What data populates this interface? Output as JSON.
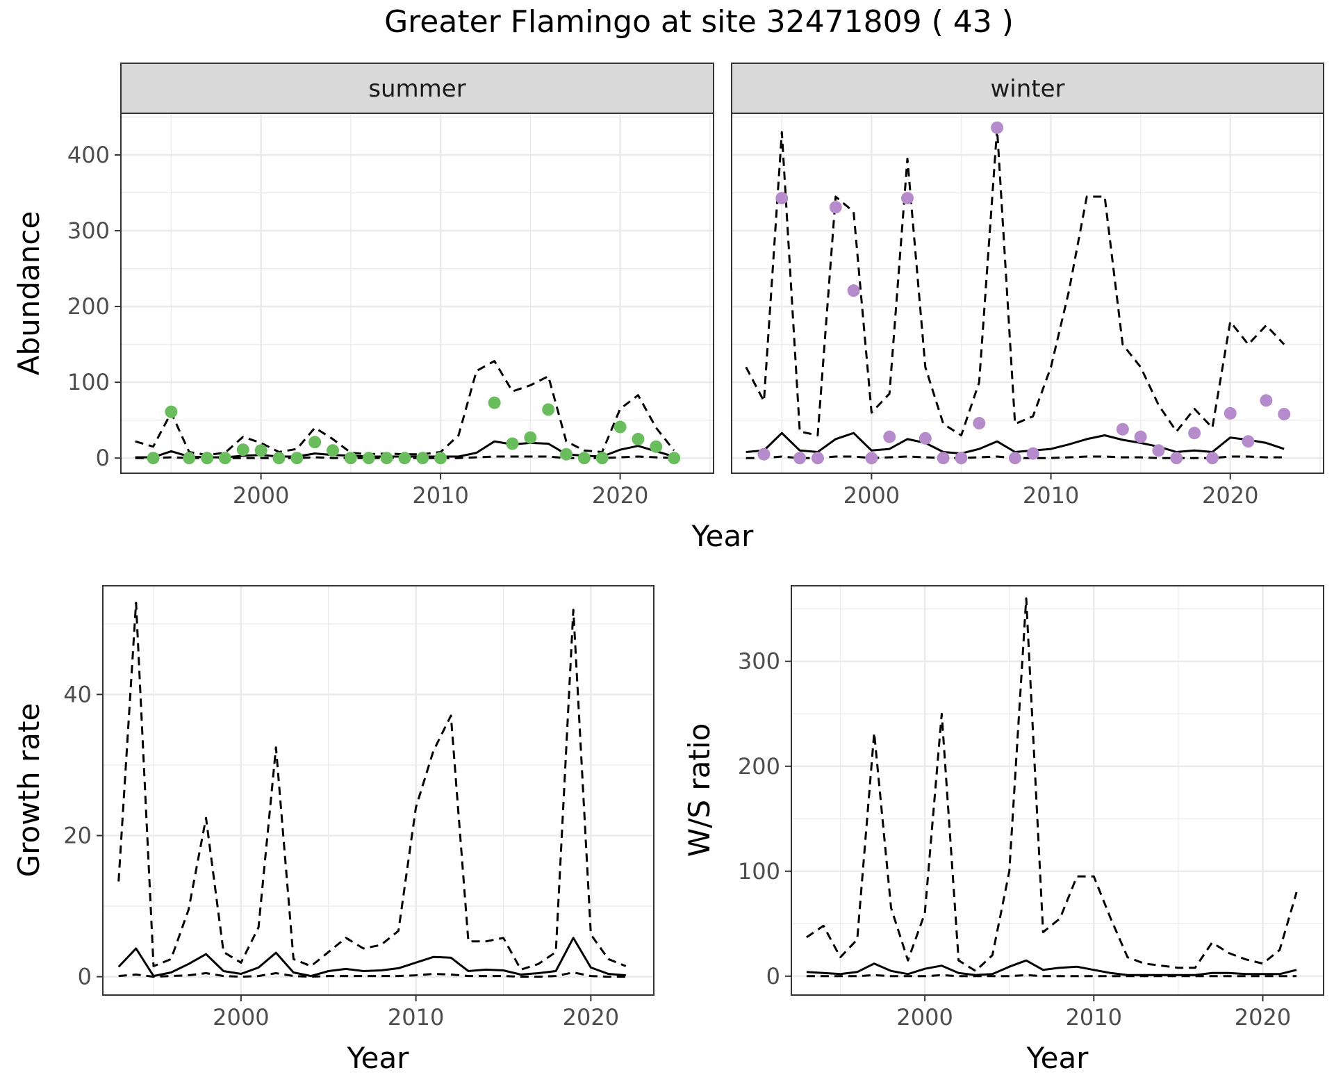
{
  "title": "Greater Flamingo at site 32471809 ( 43 )",
  "colors": {
    "summer_points": "#6ABD5C",
    "winter_points": "#B68BCB",
    "lines": "#000000",
    "grid": "#EBEBEB",
    "strip_bg": "#D9D9D9",
    "panel_border": "#333333",
    "axis_text": "#4D4D4D"
  },
  "chart_data": [
    {
      "type": "line",
      "panel": "summer",
      "strip_label": "summer",
      "xlabel": "Year",
      "ylabel": "Abundance",
      "xlim": [
        1992.2,
        2025.2
      ],
      "ylim": [
        -20,
        455
      ],
      "xticks": [
        2000,
        2010,
        2020
      ],
      "yticks": [
        0,
        100,
        200,
        300,
        400
      ],
      "grid": true,
      "series": [
        {
          "role": "points",
          "x": [
            1994,
            1995,
            1996,
            1997,
            1998,
            1999,
            2000,
            2001,
            2002,
            2003,
            2004,
            2005,
            2006,
            2007,
            2008,
            2009,
            2010,
            2013,
            2014,
            2015,
            2016,
            2017,
            2018,
            2019,
            2020,
            2021,
            2022,
            2023
          ],
          "values": [
            0,
            61,
            0,
            0,
            0,
            11,
            10,
            0,
            0,
            21,
            10,
            0,
            0,
            0,
            0,
            0,
            0,
            73,
            19,
            27,
            64,
            5,
            0,
            0,
            41,
            25,
            15,
            0
          ]
        },
        {
          "role": "mean",
          "style": "solid",
          "x": [
            1993,
            1994,
            1995,
            1996,
            1997,
            1998,
            1999,
            2000,
            2001,
            2002,
            2003,
            2004,
            2005,
            2006,
            2007,
            2008,
            2009,
            2010,
            2011,
            2012,
            2013,
            2014,
            2015,
            2016,
            2017,
            2018,
            2019,
            2020,
            2021,
            2022,
            2023
          ],
          "values": [
            1,
            1,
            9,
            2,
            1,
            1,
            3,
            4,
            2,
            2,
            6,
            4,
            3,
            2,
            2,
            2,
            2,
            2,
            2,
            7,
            22,
            18,
            20,
            19,
            5,
            3,
            2,
            11,
            16,
            9,
            2
          ]
        },
        {
          "role": "upper",
          "style": "dashed",
          "x": [
            1993,
            1994,
            1995,
            1996,
            1997,
            1998,
            1999,
            2000,
            2001,
            2002,
            2003,
            2004,
            2005,
            2006,
            2007,
            2008,
            2009,
            2010,
            2011,
            2012,
            2013,
            2014,
            2015,
            2016,
            2017,
            2018,
            2019,
            2020,
            2021,
            2022,
            2023
          ],
          "values": [
            22,
            15,
            60,
            8,
            4,
            7,
            28,
            20,
            8,
            12,
            40,
            25,
            7,
            5,
            6,
            5,
            5,
            8,
            30,
            115,
            128,
            88,
            96,
            108,
            22,
            10,
            8,
            65,
            83,
            40,
            10
          ]
        },
        {
          "role": "lower",
          "style": "dashed",
          "x": [
            1993,
            1994,
            1995,
            1996,
            1997,
            1998,
            1999,
            2000,
            2001,
            2002,
            2003,
            2004,
            2005,
            2006,
            2007,
            2008,
            2009,
            2010,
            2011,
            2012,
            2013,
            2014,
            2015,
            2016,
            2017,
            2018,
            2019,
            2020,
            2021,
            2022,
            2023
          ],
          "values": [
            0,
            0,
            1,
            0,
            0,
            0,
            0,
            0,
            0,
            0,
            1,
            0,
            0,
            0,
            0,
            0,
            0,
            0,
            0,
            1,
            2,
            2,
            2,
            2,
            0,
            0,
            0,
            1,
            2,
            1,
            0
          ]
        }
      ]
    },
    {
      "type": "line",
      "panel": "winter",
      "strip_label": "winter",
      "xlabel": "Year",
      "ylabel": "",
      "xlim": [
        1992.2,
        2025.2
      ],
      "ylim": [
        -20,
        455
      ],
      "xticks": [
        2000,
        2010,
        2020
      ],
      "yticks": [
        0,
        100,
        200,
        300,
        400
      ],
      "grid": true,
      "series": [
        {
          "role": "points",
          "x": [
            1994,
            1995,
            1996,
            1997,
            1998,
            1999,
            2000,
            2001,
            2002,
            2003,
            2004,
            2005,
            2006,
            2007,
            2008,
            2009,
            2014,
            2015,
            2016,
            2017,
            2018,
            2019,
            2020,
            2021,
            2022,
            2023
          ],
          "values": [
            5,
            343,
            0,
            0,
            331,
            221,
            0,
            28,
            343,
            26,
            0,
            0,
            46,
            436,
            0,
            6,
            38,
            28,
            10,
            0,
            33,
            0,
            59,
            22,
            76,
            58
          ]
        },
        {
          "role": "mean",
          "style": "solid",
          "x": [
            1993,
            1994,
            1995,
            1996,
            1997,
            1998,
            1999,
            2000,
            2001,
            2002,
            2003,
            2004,
            2005,
            2006,
            2007,
            2008,
            2009,
            2010,
            2011,
            2012,
            2013,
            2014,
            2015,
            2016,
            2017,
            2018,
            2019,
            2020,
            2021,
            2022,
            2023
          ],
          "values": [
            8,
            10,
            33,
            10,
            8,
            25,
            33,
            10,
            12,
            25,
            20,
            8,
            6,
            12,
            22,
            8,
            10,
            12,
            18,
            25,
            30,
            24,
            20,
            15,
            8,
            10,
            8,
            27,
            24,
            20,
            12
          ]
        },
        {
          "role": "upper",
          "style": "dashed",
          "x": [
            1993,
            1994,
            1995,
            1996,
            1997,
            1998,
            1999,
            2000,
            2001,
            2002,
            2003,
            2004,
            2005,
            2006,
            2007,
            2008,
            2009,
            2010,
            2011,
            2012,
            2013,
            2014,
            2015,
            2016,
            2017,
            2018,
            2019,
            2020,
            2021,
            2022,
            2023
          ],
          "values": [
            120,
            75,
            430,
            35,
            30,
            345,
            325,
            60,
            85,
            395,
            120,
            45,
            30,
            100,
            435,
            45,
            55,
            120,
            220,
            345,
            345,
            150,
            120,
            70,
            35,
            65,
            40,
            180,
            150,
            175,
            150
          ]
        },
        {
          "role": "lower",
          "style": "dashed",
          "x": [
            1993,
            1994,
            1995,
            1996,
            1997,
            1998,
            1999,
            2000,
            2001,
            2002,
            2003,
            2004,
            2005,
            2006,
            2007,
            2008,
            2009,
            2010,
            2011,
            2012,
            2013,
            2014,
            2015,
            2016,
            2017,
            2018,
            2019,
            2020,
            2021,
            2022,
            2023
          ],
          "values": [
            0,
            0,
            2,
            0,
            0,
            2,
            2,
            0,
            1,
            2,
            1,
            0,
            0,
            1,
            2,
            0,
            0,
            0,
            1,
            2,
            2,
            1,
            1,
            0,
            0,
            0,
            0,
            2,
            2,
            1,
            1
          ]
        }
      ]
    },
    {
      "type": "line",
      "panel": "growth",
      "xlabel": "Year",
      "ylabel": "Growth rate",
      "xlim": [
        1992.1,
        2023.6
      ],
      "ylim": [
        -2.6,
        55.4
      ],
      "xticks": [
        2000,
        2010,
        2020
      ],
      "yticks": [
        0,
        20,
        40
      ],
      "grid": true,
      "series": [
        {
          "role": "mean",
          "style": "solid",
          "x": [
            1993,
            1994,
            1995,
            1996,
            1997,
            1998,
            1999,
            2000,
            2001,
            2002,
            2003,
            2004,
            2005,
            2006,
            2007,
            2008,
            2009,
            2010,
            2011,
            2012,
            2013,
            2014,
            2015,
            2016,
            2017,
            2018,
            2019,
            2020,
            2021,
            2022
          ],
          "values": [
            1.4,
            4,
            0.1,
            0.6,
            1.8,
            3.2,
            0.8,
            0.4,
            1.3,
            3.4,
            0.6,
            0.1,
            0.8,
            1.1,
            0.8,
            0.9,
            1.2,
            2,
            2.8,
            2.7,
            0.8,
            1,
            0.9,
            0.3,
            0.5,
            0.8,
            5.5,
            1.3,
            0.4,
            0.2
          ]
        },
        {
          "role": "upper",
          "style": "dashed",
          "x": [
            1993,
            1994,
            1995,
            1996,
            1997,
            1998,
            1999,
            2000,
            2001,
            2002,
            2003,
            2004,
            2005,
            2006,
            2007,
            2008,
            2009,
            2010,
            2011,
            2012,
            2013,
            2014,
            2015,
            2016,
            2017,
            2018,
            2019,
            2020,
            2021,
            2022
          ],
          "values": [
            13.5,
            53,
            1.5,
            2.5,
            9.5,
            22.5,
            3.5,
            2,
            7,
            32.5,
            2.5,
            1.5,
            3.5,
            5.5,
            4,
            4.5,
            6.5,
            24,
            32,
            37,
            5,
            5,
            5.5,
            1,
            1.8,
            3.5,
            52,
            6,
            2.5,
            1.5
          ]
        },
        {
          "role": "lower",
          "style": "dashed",
          "x": [
            1993,
            1994,
            1995,
            1996,
            1997,
            1998,
            1999,
            2000,
            2001,
            2002,
            2003,
            2004,
            2005,
            2006,
            2007,
            2008,
            2009,
            2010,
            2011,
            2012,
            2013,
            2014,
            2015,
            2016,
            2017,
            2018,
            2019,
            2020,
            2021,
            2022
          ],
          "values": [
            0.1,
            0.3,
            0,
            0.1,
            0.2,
            0.5,
            0.1,
            0,
            0.1,
            0.5,
            0.1,
            0,
            0.1,
            0.1,
            0.1,
            0.1,
            0.1,
            0.2,
            0.4,
            0.3,
            0.1,
            0.1,
            0.1,
            0,
            0,
            0.1,
            0.6,
            0.1,
            0,
            0
          ]
        }
      ]
    },
    {
      "type": "line",
      "panel": "ws_ratio",
      "xlabel": "Year",
      "ylabel": "W/S ratio",
      "xlim": [
        1992.1,
        2023.6
      ],
      "ylim": [
        -18,
        372
      ],
      "xticks": [
        2000,
        2010,
        2020
      ],
      "yticks": [
        0,
        100,
        200,
        300
      ],
      "grid": true,
      "series": [
        {
          "role": "mean",
          "style": "solid",
          "x": [
            1993,
            1994,
            1995,
            1996,
            1997,
            1998,
            1999,
            2000,
            2001,
            2002,
            2003,
            2004,
            2005,
            2006,
            2007,
            2008,
            2009,
            2010,
            2011,
            2012,
            2013,
            2014,
            2015,
            2016,
            2017,
            2018,
            2019,
            2020,
            2021,
            2022
          ],
          "values": [
            4,
            3,
            2,
            4,
            12,
            5,
            2,
            7,
            10,
            3,
            1,
            2,
            9,
            15,
            6,
            8,
            9,
            6,
            3,
            1,
            1,
            1,
            1,
            1,
            3,
            3,
            2,
            2,
            2,
            6
          ]
        },
        {
          "role": "upper",
          "style": "dashed",
          "x": [
            1993,
            1994,
            1995,
            1996,
            1997,
            1998,
            1999,
            2000,
            2001,
            2002,
            2003,
            2004,
            2005,
            2006,
            2007,
            2008,
            2009,
            2010,
            2011,
            2012,
            2013,
            2014,
            2015,
            2016,
            2017,
            2018,
            2019,
            2020,
            2021,
            2022
          ],
          "values": [
            37,
            48,
            18,
            35,
            232,
            65,
            15,
            60,
            250,
            15,
            5,
            20,
            100,
            360,
            42,
            55,
            95,
            95,
            55,
            18,
            12,
            10,
            8,
            8,
            32,
            22,
            16,
            12,
            25,
            80
          ]
        },
        {
          "role": "lower",
          "style": "dashed",
          "x": [
            1993,
            1994,
            1995,
            1996,
            1997,
            1998,
            1999,
            2000,
            2001,
            2002,
            2003,
            2004,
            2005,
            2006,
            2007,
            2008,
            2009,
            2010,
            2011,
            2012,
            2013,
            2014,
            2015,
            2016,
            2017,
            2018,
            2019,
            2020,
            2021,
            2022
          ],
          "values": [
            0,
            0,
            0,
            0,
            1,
            0,
            0,
            0,
            1,
            0,
            0,
            0,
            0,
            1,
            0,
            0,
            0,
            0,
            0,
            0,
            0,
            0,
            0,
            0,
            0,
            0,
            0,
            0,
            0,
            0
          ]
        }
      ]
    }
  ]
}
